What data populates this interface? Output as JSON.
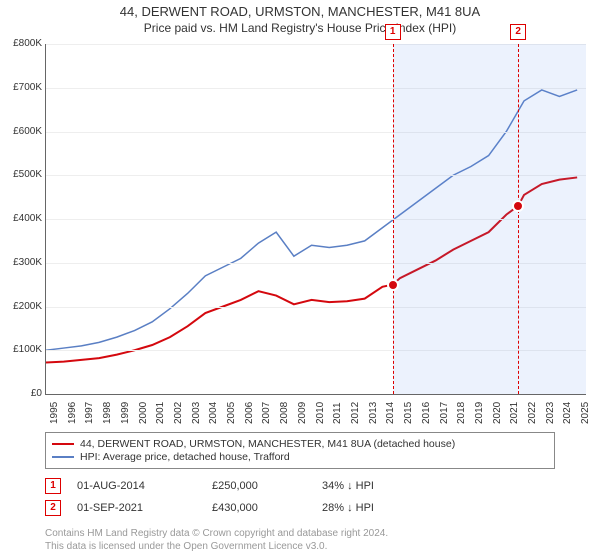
{
  "title": "44, DERWENT ROAD, URMSTON, MANCHESTER, M41 8UA",
  "subtitle": "Price paid vs. HM Land Registry's House Price Index (HPI)",
  "chart": {
    "type": "line",
    "background_color": "#ffffff",
    "grid_color": "#eeeeee",
    "axis_color": "#666666",
    "font_size": 10,
    "xlim": [
      1995,
      2025.5
    ],
    "ylim": [
      0,
      800000
    ],
    "ytick_step": 100000,
    "ytick_labels": [
      "£0",
      "£100K",
      "£200K",
      "£300K",
      "£400K",
      "£500K",
      "£600K",
      "£700K",
      "£800K"
    ],
    "xticks": [
      1995,
      1996,
      1997,
      1998,
      1999,
      2000,
      2001,
      2002,
      2003,
      2004,
      2005,
      2006,
      2007,
      2008,
      2009,
      2010,
      2011,
      2012,
      2013,
      2014,
      2015,
      2016,
      2017,
      2018,
      2019,
      2020,
      2021,
      2022,
      2023,
      2024,
      2025
    ],
    "series": [
      {
        "name": "property",
        "label": "44, DERWENT ROAD, URMSTON, MANCHESTER, M41 8UA (detached house)",
        "color": "#d4080e",
        "line_width": 2,
        "data": [
          [
            1995,
            72000
          ],
          [
            1996,
            74000
          ],
          [
            1997,
            78000
          ],
          [
            1998,
            82000
          ],
          [
            1999,
            90000
          ],
          [
            2000,
            100000
          ],
          [
            2001,
            112000
          ],
          [
            2002,
            130000
          ],
          [
            2003,
            155000
          ],
          [
            2004,
            185000
          ],
          [
            2005,
            200000
          ],
          [
            2006,
            215000
          ],
          [
            2007,
            235000
          ],
          [
            2008,
            225000
          ],
          [
            2009,
            205000
          ],
          [
            2010,
            215000
          ],
          [
            2011,
            210000
          ],
          [
            2012,
            212000
          ],
          [
            2013,
            218000
          ],
          [
            2014,
            245000
          ],
          [
            2014.58,
            250000
          ],
          [
            2015,
            265000
          ],
          [
            2016,
            285000
          ],
          [
            2017,
            305000
          ],
          [
            2018,
            330000
          ],
          [
            2019,
            350000
          ],
          [
            2020,
            370000
          ],
          [
            2021,
            410000
          ],
          [
            2021.67,
            430000
          ],
          [
            2022,
            455000
          ],
          [
            2023,
            480000
          ],
          [
            2024,
            490000
          ],
          [
            2025,
            495000
          ]
        ]
      },
      {
        "name": "hpi",
        "label": "HPI: Average price, detached house, Trafford",
        "color": "#5a7fc4",
        "line_width": 1.5,
        "data": [
          [
            1995,
            100000
          ],
          [
            1996,
            105000
          ],
          [
            1997,
            110000
          ],
          [
            1998,
            118000
          ],
          [
            1999,
            130000
          ],
          [
            2000,
            145000
          ],
          [
            2001,
            165000
          ],
          [
            2002,
            195000
          ],
          [
            2003,
            230000
          ],
          [
            2004,
            270000
          ],
          [
            2005,
            290000
          ],
          [
            2006,
            310000
          ],
          [
            2007,
            345000
          ],
          [
            2008,
            370000
          ],
          [
            2009,
            315000
          ],
          [
            2010,
            340000
          ],
          [
            2011,
            335000
          ],
          [
            2012,
            340000
          ],
          [
            2013,
            350000
          ],
          [
            2014,
            380000
          ],
          [
            2015,
            410000
          ],
          [
            2016,
            440000
          ],
          [
            2017,
            470000
          ],
          [
            2018,
            500000
          ],
          [
            2019,
            520000
          ],
          [
            2020,
            545000
          ],
          [
            2021,
            600000
          ],
          [
            2022,
            670000
          ],
          [
            2023,
            695000
          ],
          [
            2024,
            680000
          ],
          [
            2025,
            695000
          ]
        ]
      }
    ],
    "shade_from": 2014.58,
    "markers": [
      {
        "label": "1",
        "x": 2014.58,
        "y": 250000,
        "color": "#d4080e"
      },
      {
        "label": "2",
        "x": 2021.67,
        "y": 430000,
        "color": "#d4080e"
      }
    ]
  },
  "legend": {
    "border_color": "#888888"
  },
  "transactions": [
    {
      "badge": "1",
      "date": "01-AUG-2014",
      "price": "£250,000",
      "delta": "34% ↓ HPI"
    },
    {
      "badge": "2",
      "date": "01-SEP-2021",
      "price": "£430,000",
      "delta": "28% ↓ HPI"
    }
  ],
  "attribution": {
    "line1": "Contains HM Land Registry data © Crown copyright and database right 2024.",
    "line2": "This data is licensed under the Open Government Licence v3.0."
  }
}
